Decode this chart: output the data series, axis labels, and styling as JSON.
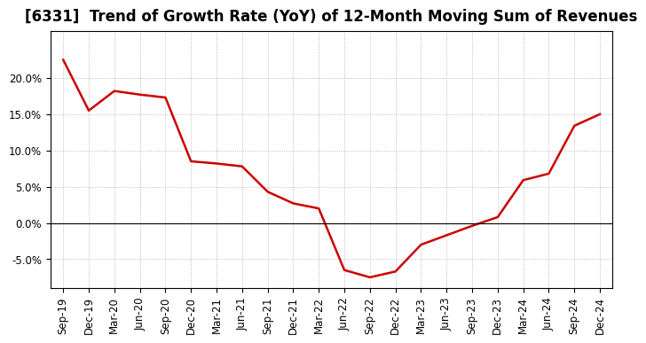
{
  "title": "[6331]  Trend of Growth Rate (YoY) of 12-Month Moving Sum of Revenues",
  "line_color": "#CC0000",
  "background_color": "#ffffff",
  "grid_color": "#aaaaaa",
  "x_labels": [
    "Sep-19",
    "Dec-19",
    "Mar-20",
    "Jun-20",
    "Sep-20",
    "Dec-20",
    "Mar-21",
    "Jun-21",
    "Sep-21",
    "Dec-21",
    "Mar-22",
    "Jun-22",
    "Sep-22",
    "Dec-22",
    "Mar-23",
    "Jun-23",
    "Sep-23",
    "Dec-23",
    "Mar-24",
    "Jun-24",
    "Sep-24",
    "Dec-24"
  ],
  "y_values": [
    0.225,
    0.155,
    0.182,
    0.177,
    0.173,
    0.085,
    0.082,
    0.078,
    0.043,
    0.027,
    0.02,
    -0.065,
    -0.075,
    -0.067,
    -0.03,
    -0.017,
    -0.004,
    0.008,
    0.059,
    0.068,
    0.134,
    0.15
  ],
  "ylim": [
    -0.09,
    0.265
  ],
  "yticks": [
    -0.05,
    0.0,
    0.05,
    0.1,
    0.15,
    0.2
  ],
  "title_fontsize": 12,
  "tick_fontsize": 8.5,
  "line_width": 1.8
}
